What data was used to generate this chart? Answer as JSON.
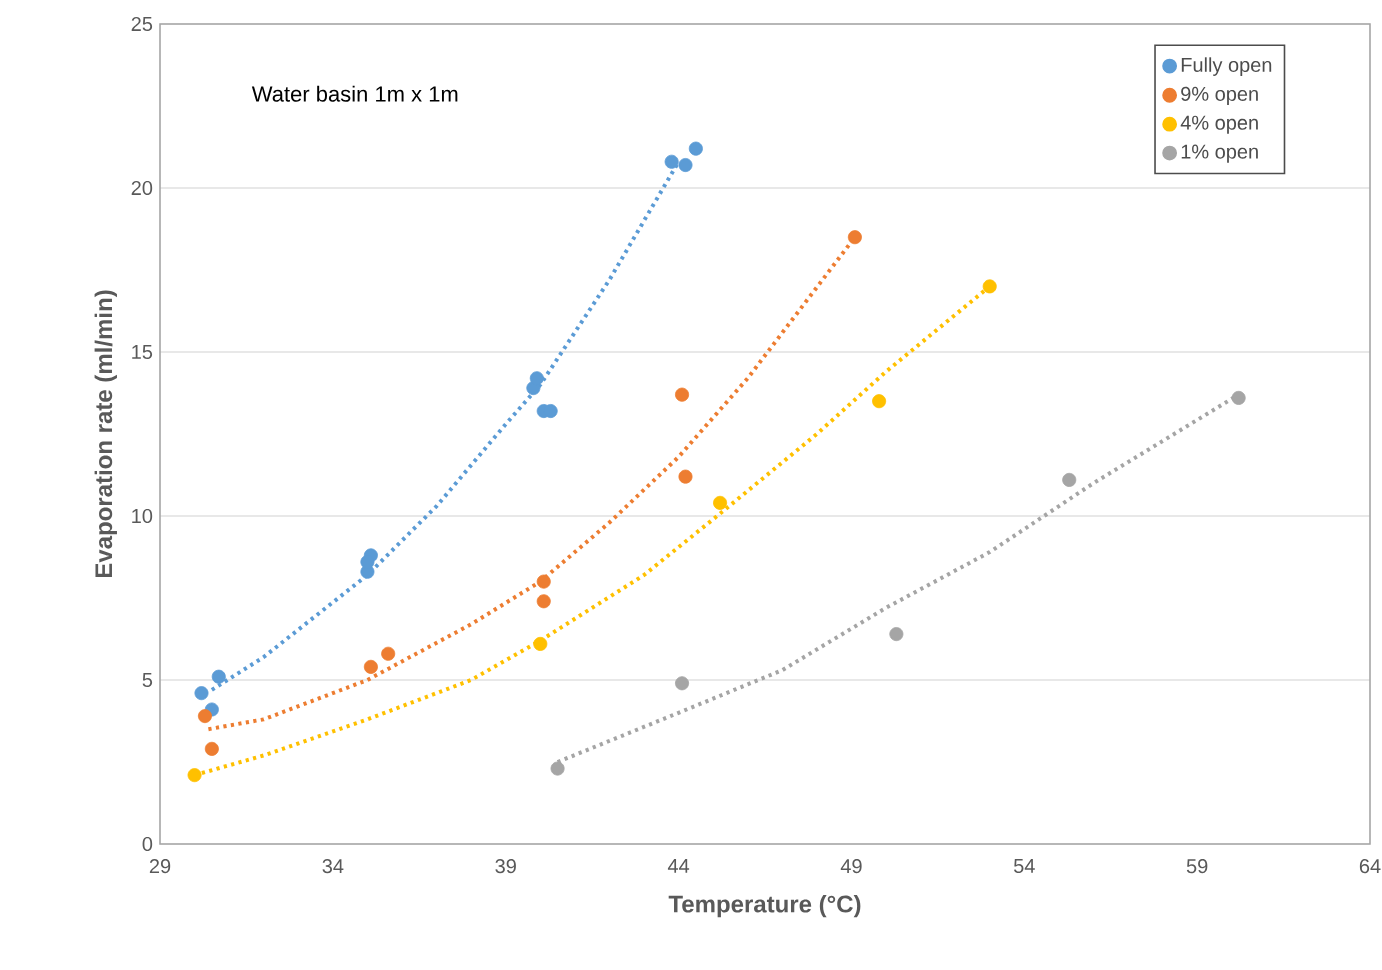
{
  "chart_data": {
    "type": "scatter",
    "xlabel": "Temperature (°C)",
    "ylabel": "Evaporation rate (ml/min)",
    "annotations": [
      "Water basin 1m x 1m"
    ],
    "xlim": [
      29,
      64
    ],
    "ylim": [
      0,
      25
    ],
    "xticks": [
      29,
      34,
      39,
      44,
      49,
      54,
      59,
      64
    ],
    "yticks": [
      0,
      5,
      10,
      15,
      20,
      25
    ],
    "grid": "y",
    "legend": "top right",
    "marker": "circle",
    "series": [
      {
        "name": "Fully open",
        "color": "#5b9bd5",
        "x": [
          30.2,
          30.7,
          30.5,
          35.1,
          35.0,
          35.0,
          39.8,
          39.9,
          40.1,
          40.3,
          43.8,
          44.2,
          44.5
        ],
        "values": [
          4.6,
          5.1,
          4.1,
          8.8,
          8.3,
          8.6,
          13.9,
          14.2,
          13.2,
          13.2,
          20.8,
          20.7,
          21.2
        ]
      },
      {
        "name": "9% open",
        "color": "#ed7d31",
        "x": [
          30.3,
          30.5,
          35.1,
          35.6,
          40.1,
          40.1,
          44.1,
          44.2,
          49.1
        ],
        "values": [
          3.9,
          2.9,
          5.4,
          5.8,
          8.0,
          7.4,
          13.7,
          11.2,
          18.5
        ]
      },
      {
        "name": "4% open",
        "color": "#ffc000",
        "x": [
          30.0,
          40.0,
          45.2,
          49.8,
          53.0
        ],
        "values": [
          2.1,
          6.1,
          10.4,
          13.5,
          17.0
        ]
      },
      {
        "name": "1% open",
        "color": "#a5a5a5",
        "x": [
          40.5,
          44.1,
          50.3,
          55.3,
          60.2
        ],
        "values": [
          2.3,
          4.9,
          6.4,
          11.1,
          13.6
        ]
      },
      {
        "type": "line",
        "line_style": "dotted",
        "marker": "none",
        "color": "#5b9bd5",
        "x": [
          30.5,
          32,
          35,
          37,
          39,
          40,
          42,
          44
        ],
        "values": [
          4.7,
          5.7,
          8.2,
          10.3,
          12.8,
          14.0,
          17.2,
          20.8
        ]
      },
      {
        "type": "line",
        "line_style": "dotted",
        "marker": "none",
        "color": "#ed7d31",
        "x": [
          30.4,
          32,
          35,
          38,
          40,
          42,
          44,
          46,
          49.1
        ],
        "values": [
          3.5,
          3.8,
          5.0,
          6.7,
          8.0,
          9.8,
          11.8,
          14.2,
          18.5
        ]
      },
      {
        "type": "line",
        "line_style": "dotted",
        "marker": "none",
        "color": "#ffc000",
        "x": [
          30,
          32,
          35,
          38,
          40,
          43,
          45,
          48,
          50,
          53
        ],
        "values": [
          2.1,
          2.7,
          3.8,
          5.0,
          6.2,
          8.2,
          9.9,
          12.5,
          14.4,
          17.0
        ]
      },
      {
        "type": "line",
        "line_style": "dotted",
        "marker": "none",
        "color": "#a5a5a5",
        "x": [
          40.5,
          44,
          47,
          50,
          53,
          56,
          60.2
        ],
        "values": [
          2.5,
          4.0,
          5.3,
          7.2,
          8.9,
          11.0,
          13.7
        ]
      }
    ]
  }
}
